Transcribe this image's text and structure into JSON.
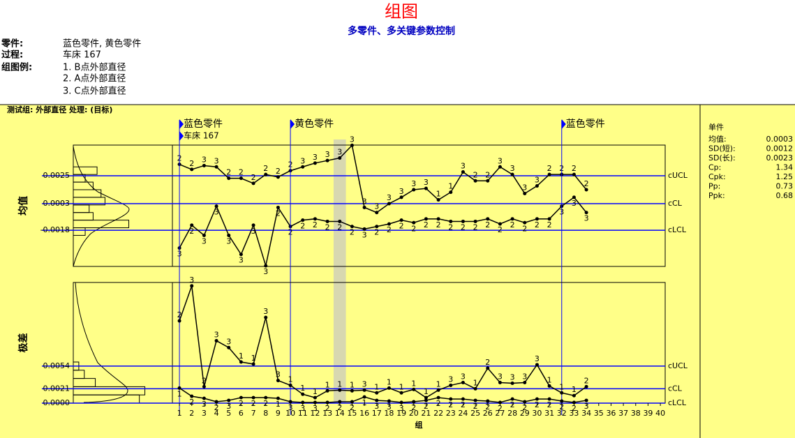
{
  "header": {
    "title": "组图",
    "subtitle": "多零件、多关键参数控制"
  },
  "info": {
    "labels": [
      "零件:",
      "过程:",
      "组图例:"
    ],
    "parts": "蓝色零件, 黄色零件",
    "process": "车床 167",
    "legend": [
      "1. B点外部直径",
      "2. A点外部直径",
      "3. C点外部直径"
    ]
  },
  "group_title": "测试组: 外部直径 处理: (目标)",
  "stats": {
    "title": "单件",
    "rows": [
      [
        "均值:",
        "0.0003"
      ],
      [
        "SD(短):",
        "0.0012"
      ],
      [
        "SD(长):",
        "0.0023"
      ],
      [
        "Cp:",
        "1.34"
      ],
      [
        "Cpk:",
        "1.25"
      ],
      [
        "Pp:",
        "0.73"
      ],
      [
        "Ppk:",
        "0.68"
      ]
    ]
  },
  "chart_data": [
    {
      "type": "line",
      "ylabel": "均值",
      "x": [
        1,
        2,
        3,
        4,
        5,
        6,
        7,
        8,
        9,
        10,
        11,
        12,
        13,
        14,
        15,
        16,
        17,
        18,
        19,
        20,
        21,
        22,
        23,
        24,
        25,
        26,
        27,
        28,
        29,
        30,
        31,
        32,
        33,
        34
      ],
      "series": [
        {
          "color": "#000000",
          "values": [
            0.0034,
            0.003,
            0.0033,
            0.0032,
            0.0023,
            0.0023,
            0.0019,
            0.0026,
            0.0024,
            0.0029,
            0.0032,
            0.0035,
            0.0037,
            0.0039,
            0.0049,
            0.0,
            -0.0004,
            0.0003,
            0.0008,
            0.0014,
            0.0015,
            0.0006,
            0.0012,
            0.0028,
            0.0021,
            0.0021,
            0.0032,
            0.0026,
            0.0011,
            0.0017,
            0.0026,
            0.0026,
            0.0026,
            0.0014
          ],
          "point_labels": [
            "2",
            "2",
            "3",
            "3",
            "2",
            "2",
            "2",
            "2",
            "2",
            "2",
            "3",
            "3",
            "3",
            "3",
            "3",
            "3",
            "3",
            "3",
            "3",
            "3",
            "3",
            "1",
            "1",
            "3",
            "2",
            "2",
            "3",
            "3",
            "3",
            "3",
            "2",
            "2",
            "2",
            "2"
          ]
        },
        {
          "color": "#000000",
          "values": [
            -0.0032,
            -0.0014,
            -0.0022,
            0.0001,
            -0.0022,
            -0.0037,
            -0.0014,
            -0.0046,
            0.0,
            -0.0015,
            -0.001,
            -0.0009,
            -0.0011,
            -0.0011,
            -0.0015,
            -0.0017,
            -0.0015,
            -0.0013,
            -0.001,
            -0.0012,
            -0.0009,
            -0.0009,
            -0.0011,
            -0.0011,
            -0.0011,
            -0.0009,
            -0.0013,
            -0.0009,
            -0.0012,
            -0.0009,
            -0.0009,
            0.0001,
            0.0008,
            -0.0004
          ],
          "point_labels": [
            "3",
            "2",
            "3",
            "3",
            "3",
            "3",
            "3",
            "3",
            "2",
            "2",
            "2",
            "2",
            "2",
            "2",
            "2",
            "3",
            "2",
            "2",
            "2",
            "2",
            "2",
            "2",
            "2",
            "2",
            "2",
            "2",
            "2",
            "2",
            "2",
            "2",
            "2",
            "3",
            "3",
            "3"
          ]
        }
      ],
      "xlim": [
        0.43,
        40.39
      ],
      "ylim": [
        -0.00465,
        0.00492
      ],
      "yticks": [
        0.0025,
        0.0003,
        -0.0018
      ],
      "control_labels": [
        "cUCL",
        "cCL",
        "cLCL"
      ],
      "control_color": "#0000ff",
      "markers": [
        {
          "x": 1,
          "labels": [
            "蓝色零件",
            "车床 167"
          ]
        },
        {
          "x": 10,
          "labels": [
            "黄色零件"
          ]
        },
        {
          "x": 32,
          "labels": [
            "蓝色零件"
          ]
        }
      ],
      "highlight_x": 14,
      "histogram": {
        "bins": [
          -0.0022,
          -0.0016,
          -0.001,
          -0.0004,
          0.0002,
          0.0008,
          0.0014,
          0.002,
          0.0026,
          0.0032
        ],
        "counts": [
          3,
          14,
          5,
          4,
          8,
          7,
          5,
          3,
          6
        ],
        "xlim": [
          0,
          25
        ]
      }
    },
    {
      "type": "line",
      "ylabel": "极差",
      "xlabel": "组",
      "x": [
        1,
        2,
        3,
        4,
        5,
        6,
        7,
        8,
        9,
        10,
        11,
        12,
        13,
        14,
        15,
        16,
        17,
        18,
        19,
        20,
        21,
        22,
        23,
        24,
        25,
        26,
        27,
        28,
        29,
        30,
        31,
        32,
        33,
        34
      ],
      "series": [
        {
          "color": "#000000",
          "values": [
            0.012,
            0.0171,
            0.0024,
            0.0091,
            0.0081,
            0.006,
            0.0057,
            0.0125,
            0.0033,
            0.0026,
            0.0013,
            0.0008,
            0.0018,
            0.0019,
            0.0018,
            0.0019,
            0.0015,
            0.0022,
            0.0015,
            0.002,
            0.0008,
            0.0019,
            0.0026,
            0.003,
            0.0021,
            0.0051,
            0.003,
            0.0029,
            0.003,
            0.0056,
            0.0025,
            0.0015,
            0.0011,
            0.0024
          ],
          "point_labels": [
            "2",
            "3",
            "2",
            "3",
            "3",
            "1",
            "1",
            "3",
            "3",
            "1",
            "1",
            "1",
            "1",
            "1",
            "1",
            "3",
            "1",
            "1",
            "1",
            "1",
            "1",
            "1",
            "3",
            "3",
            "1",
            "2",
            "3",
            "3",
            "3",
            "3",
            "1",
            "1",
            "1",
            "2"
          ]
        },
        {
          "color": "#000000",
          "values": [
            0.0022,
            0.001,
            0.0007,
            0.0002,
            0.0004,
            0.0008,
            0.0008,
            0.0008,
            0.0007,
            0.0002,
            0.0001,
            0.0001,
            0.0001,
            0.0002,
            0.0002,
            0.0009,
            0.0004,
            0.0003,
            0.0001,
            0.0002,
            0.0004,
            0.0008,
            0.0006,
            0.0006,
            0.0004,
            0.0003,
            0.0001,
            0.0006,
            0.0002,
            0.0006,
            0.0006,
            0.0003,
            0.0001,
            0.0004
          ],
          "point_labels": [
            "1",
            "2",
            "3",
            "2",
            "3",
            "2",
            "2",
            "2",
            "1",
            "3",
            "3",
            "3",
            "2",
            "2",
            "2",
            "1",
            "3",
            "3",
            "3",
            "2",
            "2",
            "2",
            "2",
            "2",
            "2",
            "2",
            "2",
            "2",
            "2",
            "2",
            "2",
            "2",
            "2",
            "3"
          ]
        }
      ],
      "xlim": [
        0.43,
        40.39
      ],
      "ylim": [
        0,
        0.0176
      ],
      "yticks": [
        0.0054,
        0.0021,
        {
          "value": 0,
          "label": "0.0000"
        }
      ],
      "control_labels": [
        "cUCL",
        "cCL",
        "cLCL"
      ],
      "control_color": "#0000ff",
      "xticks": [
        1,
        2,
        3,
        4,
        5,
        6,
        7,
        8,
        9,
        10,
        11,
        12,
        13,
        14,
        15,
        16,
        17,
        18,
        19,
        20,
        21,
        22,
        23,
        24,
        25,
        26,
        27,
        28,
        29,
        30,
        31,
        32,
        33,
        34,
        35,
        36,
        37,
        38,
        39,
        40
      ],
      "histogram": {
        "bins": [
          0,
          0.0012,
          0.0024,
          0.0036,
          0.0048,
          0.006
        ],
        "counts": [
          12,
          13,
          4,
          2,
          1
        ],
        "xlim": [
          0,
          18
        ]
      }
    }
  ]
}
